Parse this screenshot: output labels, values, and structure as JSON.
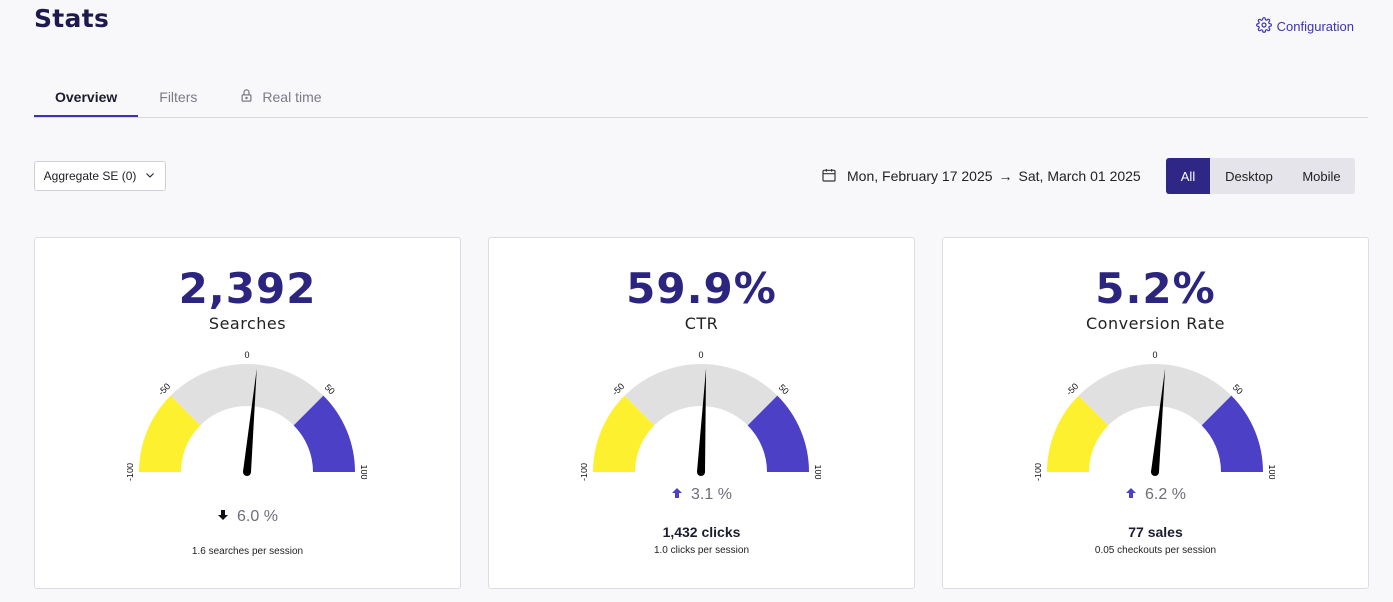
{
  "header": {
    "title": "Stats",
    "config_label": "Configuration"
  },
  "tabs": [
    {
      "label": "Overview",
      "active": true
    },
    {
      "label": "Filters",
      "active": false
    },
    {
      "label": "Real time",
      "active": false,
      "icon": "lock-icon"
    }
  ],
  "toolbar": {
    "aggregate_label": "Aggregate SE (0)",
    "date_start": "Mon, February 17 2025",
    "date_arrow": "→",
    "date_end": "Sat, March 01 2025",
    "devices": [
      {
        "label": "All",
        "active": true
      },
      {
        "label": "Desktop",
        "active": false
      },
      {
        "label": "Mobile",
        "active": false
      }
    ]
  },
  "colors": {
    "accent": "#2e2785",
    "gauge_low": "#fdf02e",
    "gauge_mid": "#e0e0e0",
    "gauge_high": "#4c40c6",
    "needle": "#000000"
  },
  "gauge_scale": {
    "min_label": "-100",
    "neg_label": "-50",
    "zero_label": "0",
    "pos_label": "50",
    "max_label": "100"
  },
  "cards": [
    {
      "value": "2,392",
      "label": "Searches",
      "gauge_value": 6.0,
      "trend_direction": "down",
      "trend_text": "6.0 %",
      "primary": "",
      "secondary": "1.6 searches per session"
    },
    {
      "value": "59.9%",
      "label": "CTR",
      "gauge_value": 3.1,
      "trend_direction": "up",
      "trend_text": "3.1 %",
      "primary": "1,432 clicks",
      "secondary": "1.0 clicks per session"
    },
    {
      "value": "5.2%",
      "label": "Conversion Rate",
      "gauge_value": 6.2,
      "trend_direction": "up",
      "trend_text": "6.2 %",
      "primary": "77 sales",
      "secondary": "0.05 checkouts per session"
    }
  ]
}
